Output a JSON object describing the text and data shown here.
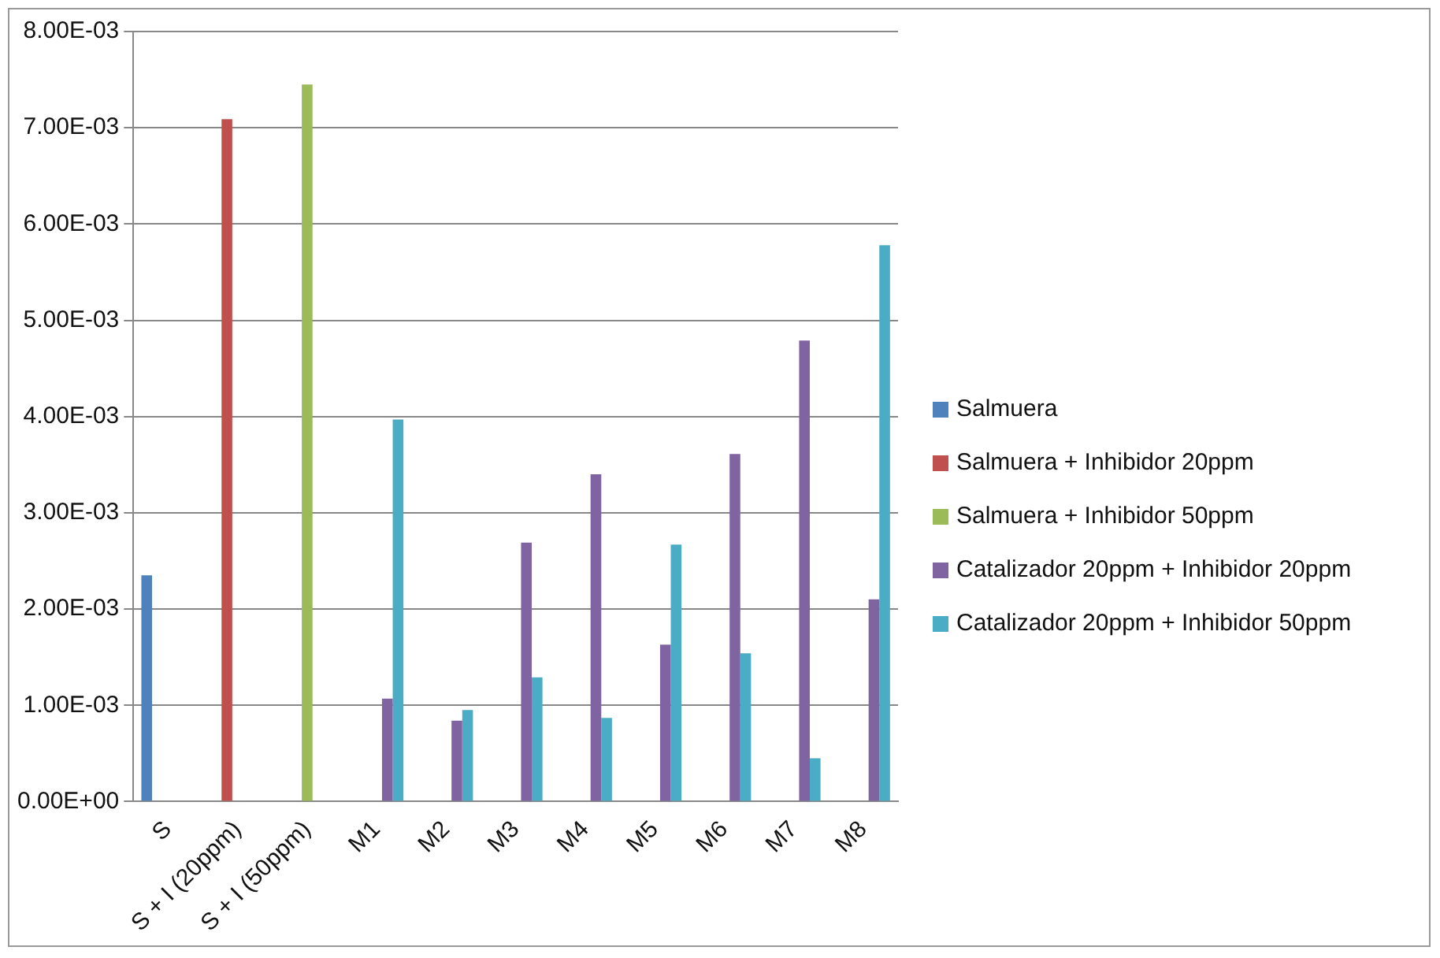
{
  "chart_data": {
    "type": "bar",
    "categories": [
      "S",
      "S + I (20ppm)",
      "S + I (50ppm)",
      "M1",
      "M2",
      "M3",
      "M4",
      "M5",
      "M6",
      "M7",
      "M8"
    ],
    "series": [
      {
        "name": "Salmuera",
        "color": "#4f81bd",
        "values": [
          0.00235,
          null,
          null,
          null,
          null,
          null,
          null,
          null,
          null,
          null,
          null
        ]
      },
      {
        "name": "Salmuera + Inhibidor 20ppm",
        "color": "#c0504d",
        "values": [
          null,
          0.00709,
          null,
          null,
          null,
          null,
          null,
          null,
          null,
          null,
          null
        ]
      },
      {
        "name": "Salmuera + Inhibidor 50ppm",
        "color": "#9bbb59",
        "values": [
          null,
          null,
          0.00745,
          null,
          null,
          null,
          null,
          null,
          null,
          null,
          null
        ]
      },
      {
        "name": "Catalizador 20ppm + Inhibidor 20ppm",
        "color": "#8064a2",
        "values": [
          null,
          null,
          null,
          0.00107,
          0.00084,
          0.00269,
          0.0034,
          0.00163,
          0.00361,
          0.00479,
          0.0021
        ]
      },
      {
        "name": "Catalizador 20ppm + Inhibidor 50ppm",
        "color": "#4bacc6",
        "values": [
          null,
          null,
          null,
          0.00397,
          0.00095,
          0.00129,
          0.00087,
          0.00267,
          0.00154,
          0.00045,
          0.00578
        ]
      }
    ],
    "ylim": [
      0,
      0.008
    ],
    "yticks": [
      {
        "value": 0,
        "label": "0.00E+00"
      },
      {
        "value": 0.001,
        "label": "1.00E-03"
      },
      {
        "value": 0.002,
        "label": "2.00E-03"
      },
      {
        "value": 0.003,
        "label": "3.00E-03"
      },
      {
        "value": 0.004,
        "label": "4.00E-03"
      },
      {
        "value": 0.005,
        "label": "5.00E-03"
      },
      {
        "value": 0.006,
        "label": "6.00E-03"
      },
      {
        "value": 0.007,
        "label": "7.00E-03"
      },
      {
        "value": 0.008,
        "label": "8.00E-03"
      }
    ],
    "grid": "y",
    "legend": "right"
  }
}
